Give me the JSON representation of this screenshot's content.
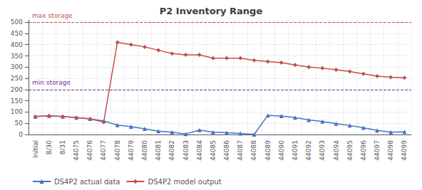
{
  "chart_data": {
    "type": "line",
    "title": "P2 Inventory Range",
    "categories": [
      "Initial",
      "8/30",
      "8/31",
      "44075",
      "44076",
      "44077",
      "44078",
      "44079",
      "44080",
      "44081",
      "44082",
      "44083",
      "44084",
      "44085",
      "44086",
      "44087",
      "44088",
      "44089",
      "44090",
      "44091",
      "44092",
      "44093",
      "44094",
      "44095",
      "44096",
      "44097",
      "44098",
      "44099"
    ],
    "series": [
      {
        "name": "DS4P2 actual data",
        "color": "#4472C4",
        "marker": "triangle",
        "values": [
          80,
          83,
          80,
          75,
          70,
          60,
          42,
          35,
          25,
          15,
          10,
          2,
          20,
          10,
          8,
          5,
          0,
          85,
          82,
          75,
          65,
          58,
          48,
          40,
          30,
          18,
          10,
          12
        ]
      },
      {
        "name": "DS4P2 model output",
        "color": "#C0504D",
        "marker": "diamond",
        "values": [
          80,
          83,
          80,
          75,
          70,
          55,
          410,
          400,
          390,
          375,
          360,
          355,
          355,
          340,
          340,
          340,
          330,
          325,
          320,
          310,
          300,
          295,
          288,
          280,
          270,
          260,
          255,
          253
        ]
      }
    ],
    "annotations": [
      {
        "text": "max storage",
        "y": 500,
        "color": "#C0504D",
        "line_style": "dashed"
      },
      {
        "text": "min storage",
        "y": 200,
        "color": "#7030A0",
        "line_style": "dashed"
      }
    ],
    "ylim": [
      0,
      510
    ],
    "yticks": [
      0,
      50,
      100,
      150,
      200,
      250,
      300,
      350,
      400,
      450,
      500
    ],
    "grid": true,
    "legend": "lower left"
  }
}
